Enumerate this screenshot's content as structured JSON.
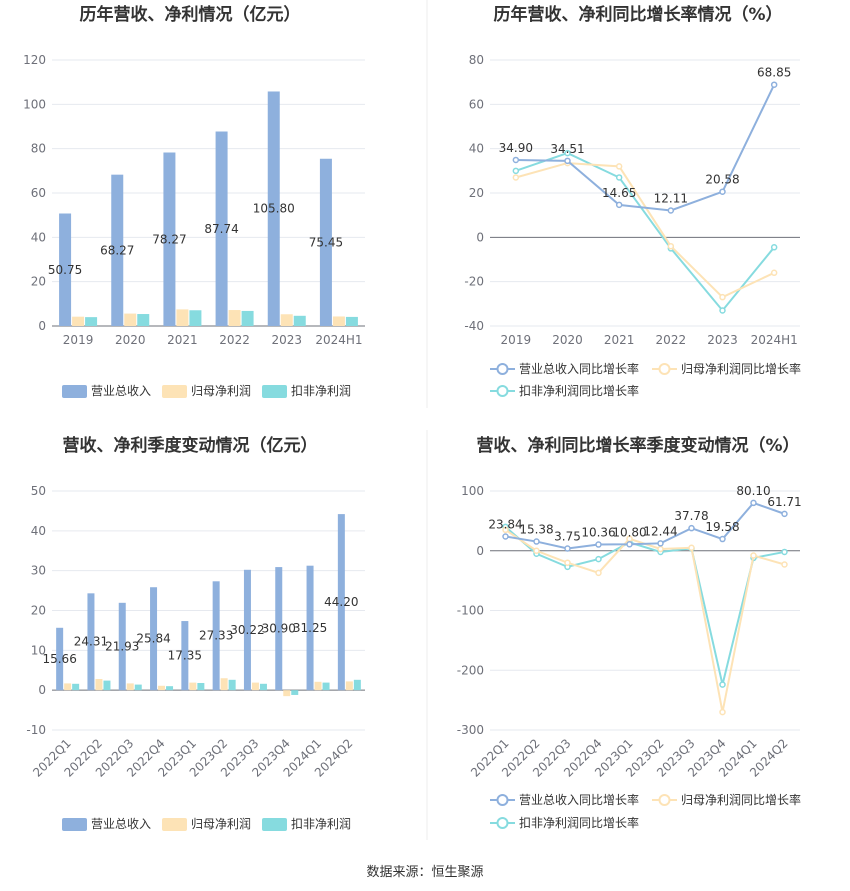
{
  "source": "数据来源：恒生聚源",
  "chart_data": [
    {
      "type": "bar",
      "title": "历年营收、净利情况（亿元）",
      "categories": [
        "2019",
        "2020",
        "2021",
        "2022",
        "2023",
        "2024H1"
      ],
      "ylim": [
        0,
        120
      ],
      "yticks": [
        0,
        20,
        40,
        60,
        80,
        100,
        120
      ],
      "legend_position": "bottom",
      "series": [
        {
          "name": "营业总收入",
          "color": "#8eb0dd",
          "values": [
            50.75,
            68.27,
            78.27,
            87.74,
            105.8,
            75.45
          ],
          "labels": [
            "50.75",
            "68.27",
            "78.27",
            "87.74",
            "105.80",
            "75.45"
          ]
        },
        {
          "name": "归母净利润",
          "color": "#fde3b6",
          "values": [
            4.2,
            5.6,
            7.5,
            7.2,
            5.3,
            4.3
          ]
        },
        {
          "name": "扣非净利润",
          "color": "#86dbdf",
          "values": [
            4.0,
            5.4,
            7.1,
            6.8,
            4.6,
            4.1
          ]
        }
      ]
    },
    {
      "type": "line",
      "title": "历年营收、净利同比增长率情况（%）",
      "categories": [
        "2019",
        "2020",
        "2021",
        "2022",
        "2023",
        "2024H1"
      ],
      "ylim": [
        -40,
        80
      ],
      "yticks": [
        -40,
        -20,
        0,
        20,
        40,
        60,
        80
      ],
      "legend_position": "bottom",
      "series": [
        {
          "name": "营业总收入同比增长率",
          "color": "#8eb0dd",
          "values": [
            34.9,
            34.51,
            14.65,
            12.11,
            20.58,
            68.85
          ],
          "labels": [
            "34.90",
            "34.51",
            "14.65",
            "12.11",
            "20.58",
            "68.85"
          ]
        },
        {
          "name": "归母净利润同比增长率",
          "color": "#fde3b6",
          "values": [
            27,
            33.5,
            32,
            -4,
            -27,
            -16
          ]
        },
        {
          "name": "扣非净利润同比增长率",
          "color": "#86dbdf",
          "values": [
            30,
            38,
            27,
            -5,
            -33,
            -4.5
          ]
        }
      ]
    },
    {
      "type": "bar",
      "title": "营收、净利季度变动情况（亿元）",
      "categories": [
        "2022Q1",
        "2022Q2",
        "2022Q3",
        "2022Q4",
        "2023Q1",
        "2023Q2",
        "2023Q3",
        "2023Q4",
        "2024Q1",
        "2024Q2"
      ],
      "ylim": [
        -10,
        50
      ],
      "yticks": [
        -10,
        0,
        10,
        20,
        30,
        40,
        50
      ],
      "legend_position": "bottom",
      "series": [
        {
          "name": "营业总收入",
          "color": "#8eb0dd",
          "values": [
            15.66,
            24.31,
            21.93,
            25.84,
            17.35,
            27.33,
            30.22,
            30.9,
            31.25,
            44.2
          ],
          "labels": [
            "15.66",
            "24.31",
            "21.93",
            "25.84",
            "17.35",
            "27.33",
            "30.22",
            "30.90",
            "31.25",
            "44.20"
          ]
        },
        {
          "name": "归母净利润",
          "color": "#fde3b6",
          "values": [
            1.7,
            2.8,
            1.7,
            1.1,
            1.9,
            3.0,
            1.9,
            -1.5,
            2.1,
            2.2
          ]
        },
        {
          "name": "扣非净利润",
          "color": "#86dbdf",
          "values": [
            1.6,
            2.4,
            1.4,
            1.0,
            1.8,
            2.6,
            1.6,
            -1.2,
            1.9,
            2.6
          ]
        }
      ]
    },
    {
      "type": "line",
      "title": "营收、净利同比增长率季度变动情况（%）",
      "categories": [
        "2022Q1",
        "2022Q2",
        "2022Q3",
        "2022Q4",
        "2023Q1",
        "2023Q2",
        "2023Q3",
        "2023Q4",
        "2024Q1",
        "2024Q2"
      ],
      "ylim": [
        -300,
        100
      ],
      "yticks": [
        -300,
        -200,
        -100,
        0,
        100
      ],
      "legend_position": "bottom",
      "series": [
        {
          "name": "营业总收入同比增长率",
          "color": "#8eb0dd",
          "values": [
            23.84,
            15.38,
            3.75,
            10.36,
            10.8,
            12.44,
            37.78,
            19.58,
            80.1,
            61.71
          ],
          "labels": [
            "23.84",
            "15.38",
            "3.75",
            "10.36",
            "10.80",
            "12.44",
            "37.78",
            "19.58",
            "80.10",
            "61.71"
          ]
        },
        {
          "name": "归母净利润同比增长率",
          "color": "#fde3b6",
          "values": [
            35,
            0,
            -20,
            -37,
            20,
            3,
            5,
            -270,
            -8,
            -23
          ]
        },
        {
          "name": "扣非净利润同比增长率",
          "color": "#86dbdf",
          "values": [
            40,
            -5,
            -27,
            -14,
            14,
            -2,
            4,
            -224,
            -12,
            -2
          ]
        }
      ]
    }
  ]
}
